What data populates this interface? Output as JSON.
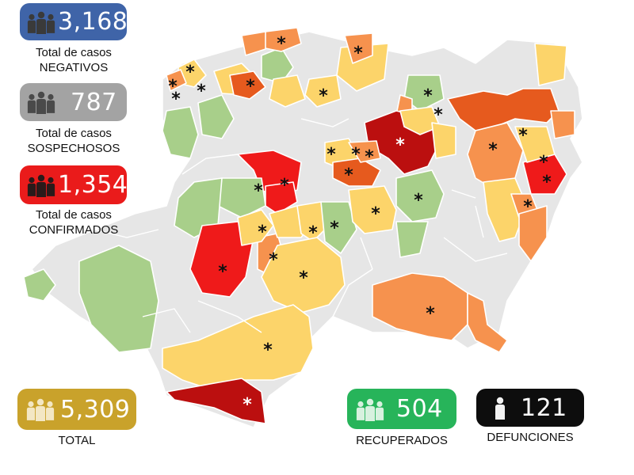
{
  "map": {
    "region": "Michoacán",
    "marker_symbol": "*",
    "colors": {
      "no_cases": "#e6e6e6",
      "border": "#ffffff",
      "green": "#a8cf8a",
      "yellow": "#fcd46a",
      "orange": "#f6924e",
      "dark_orange": "#e65a1e",
      "red": "#ef1a1a",
      "dark_red": "#bb0f0f"
    }
  },
  "stats": {
    "negativos": {
      "value": "3,168",
      "caption_line1": "Total de casos",
      "caption_line2": "NEGATIVOS",
      "color": "#3f64a8",
      "icon": "people-icon"
    },
    "sospechosos": {
      "value": "787",
      "caption_line1": "Total de casos",
      "caption_line2": "SOSPECHOSOS",
      "color": "#a3a3a3",
      "icon": "people-icon"
    },
    "confirmados": {
      "value": "1,354",
      "caption_line1": "Total de casos",
      "caption_line2": "CONFIRMADOS",
      "color": "#ea1b1b",
      "icon": "people-icon"
    },
    "total": {
      "value": "5,309",
      "caption": "TOTAL",
      "color": "#c9a22b",
      "icon": "people-icon"
    },
    "recuperados": {
      "value": "504",
      "caption": "RECUPERADOS",
      "color": "#27b45a",
      "icon": "people-icon"
    },
    "defunciones": {
      "value": "121",
      "caption": "DEFUNCIONES",
      "color": "#0d0d0d",
      "icon": "person-icon"
    }
  }
}
